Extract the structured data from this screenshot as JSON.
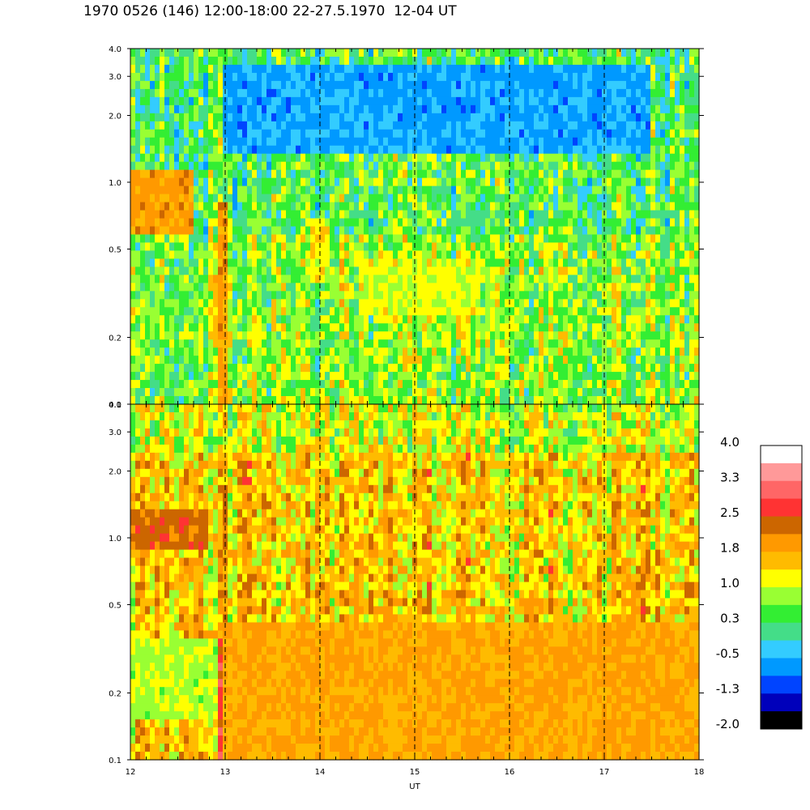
{
  "title": "1970 0526 (146) 12:00-18:00 22-27.5.1970  12-04 UT",
  "chart_data": [
    {
      "type": "heatmap",
      "panel": "top",
      "x_range": [
        12,
        18
      ],
      "y_range": [
        0.1,
        4.0
      ],
      "y_scale": "log",
      "y_ticks": [
        "0.1",
        "0.2",
        "0.5",
        "1.0",
        "2.0",
        "3.0",
        "4.0"
      ],
      "dashed_hours": [
        13,
        14,
        15,
        16,
        17
      ],
      "base_level": 0.5,
      "features": [
        {
          "x0": 12.0,
          "x1": 12.65,
          "y0": 0.6,
          "y1": 1.1,
          "level": 1.9
        },
        {
          "x0": 12.9,
          "x1": 13.0,
          "y0": 0.1,
          "y1": 0.8,
          "level": 1.9
        },
        {
          "x0": 13.9,
          "x1": 14.1,
          "y0": 0.35,
          "y1": 0.7,
          "level": 1.2
        },
        {
          "x0": 14.4,
          "x1": 15.7,
          "y0": 0.25,
          "y1": 0.45,
          "level": 1.1
        },
        {
          "x0": 13.0,
          "x1": 17.5,
          "y0": 1.4,
          "y1": 3.5,
          "level": -0.6
        }
      ]
    },
    {
      "type": "heatmap",
      "panel": "bottom",
      "x_range": [
        12,
        18
      ],
      "y_range": [
        0.1,
        4.0
      ],
      "y_scale": "log",
      "y_ticks": [
        "0.1",
        "0.2",
        "0.5",
        "1.0",
        "2.0",
        "3.0",
        "4.0"
      ],
      "x_ticks": [
        "12",
        "13",
        "14",
        "15",
        "16",
        "17",
        "18"
      ],
      "xlabel": "UT",
      "dashed_hours": [
        13,
        14,
        15,
        16,
        17
      ],
      "base_level": 1.5,
      "features": [
        {
          "x0": 12.0,
          "x1": 12.8,
          "y0": 0.85,
          "y1": 1.35,
          "level": 2.3
        },
        {
          "x0": 12.9,
          "x1": 13.0,
          "y0": 0.1,
          "y1": 0.35,
          "level": 2.7
        },
        {
          "x0": 13.0,
          "x1": 18.0,
          "y0": 0.1,
          "y1": 0.4,
          "level": 1.8
        },
        {
          "x0": 12.0,
          "x1": 12.9,
          "y0": 0.15,
          "y1": 0.35,
          "level": 0.9
        }
      ]
    }
  ],
  "colorbar": {
    "labels": [
      "4.0",
      "3.3",
      "2.5",
      "1.8",
      "1.0",
      "0.3",
      "-0.5",
      "-1.3",
      "-2.0"
    ],
    "colors": [
      "#ffffff",
      "#ff9999",
      "#ff6666",
      "#ff3333",
      "#cc6600",
      "#ff9900",
      "#ffbb00",
      "#ffff00",
      "#99ff33",
      "#33ee33",
      "#44dd88",
      "#33ccff",
      "#0099ff",
      "#0044ff",
      "#0000bb",
      "#000000"
    ]
  }
}
